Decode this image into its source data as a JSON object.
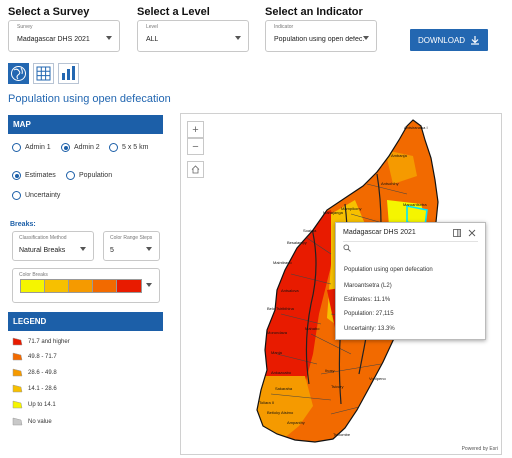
{
  "header": {
    "survey": {
      "title": "Select a Survey",
      "small_label": "Survey",
      "value": "Madagascar DHS 2021"
    },
    "level": {
      "title": "Select a Level",
      "small_label": "Level",
      "value": "ALL"
    },
    "indicator": {
      "title": "Select an Indicator",
      "small_label": "Indicator",
      "value": "Population using open defec..."
    },
    "download_label": "DOWNLOAD"
  },
  "view_buttons": [
    "map-view-icon",
    "table-view-icon",
    "chart-view-icon"
  ],
  "page_title": "Population using open defecation",
  "map_panel": {
    "heading": "MAP",
    "admin_options": [
      {
        "label": "Admin 1",
        "selected": false
      },
      {
        "label": "Admin 2",
        "selected": true
      },
      {
        "label": "5 x 5 km",
        "selected": false
      }
    ],
    "type_options": [
      {
        "label": "Estimates",
        "selected": true
      },
      {
        "label": "Population",
        "selected": false
      },
      {
        "label": "Uncertainty",
        "selected": false
      }
    ],
    "breaks": {
      "title": "Breaks:",
      "method_label": "Classification Method",
      "method_value": "Natural Breaks",
      "steps_label": "Color Range Steps",
      "steps_value": "5",
      "color_breaks_label": "Color Breaks",
      "colors": [
        "#f5f500",
        "#f7c000",
        "#f59a00",
        "#f26a00",
        "#e81b00"
      ]
    }
  },
  "legend": {
    "heading": "LEGEND",
    "items": [
      {
        "label": "71.7 and higher",
        "color": "#e81b00"
      },
      {
        "label": "49.8 - 71.7",
        "color": "#f26a00"
      },
      {
        "label": "28.6 - 49.8",
        "color": "#f59a00"
      },
      {
        "label": "14.1 - 28.6",
        "color": "#f7c000"
      },
      {
        "label": "Up to 14.1",
        "color": "#f5f500"
      },
      {
        "label": "No value",
        "color": "#c8c8c8"
      }
    ]
  },
  "map": {
    "labels": {
      "l1": "Antsiranana I",
      "l2": "Ambanja",
      "l3": "Antsohihy",
      "l4": "Mampikony",
      "l5": "Maroantsetra",
      "l6": "Mahajanga",
      "l7": "Soalala",
      "l8": "Besalampy",
      "l9": "Maintirano",
      "l10": "Antsalova",
      "l11": "Belo Tsiribihina",
      "l12": "Morondava",
      "l13": "Mahabo",
      "l14": "Manja",
      "l15": "Ankazoabo",
      "l16": "Sakaraha",
      "l17": "Toliara II",
      "l18": "Betioky Atsimo",
      "l19": "Ampanihy",
      "l20": "Tsihombe",
      "l21": "Tsivory",
      "l22": "Ihosy",
      "l23": "Vohipeno"
    },
    "attribution": "Powered by Esri"
  },
  "popup": {
    "title": "Madagascar DHS 2021",
    "indicator": "Population using open defecation",
    "region": "Maroantsetra (L2)",
    "estimates_label": "Estimates:",
    "estimates_value": "11.1%",
    "population": "Population: 27,115",
    "uncertainty": "Uncertainty: 13.3%"
  }
}
